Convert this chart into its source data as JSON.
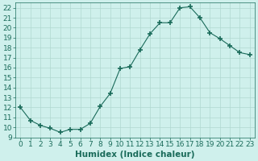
{
  "x": [
    0,
    1,
    2,
    3,
    4,
    5,
    6,
    7,
    8,
    9,
    10,
    11,
    12,
    13,
    14,
    15,
    16,
    17,
    18,
    19,
    20,
    21,
    22,
    23
  ],
  "y": [
    12.0,
    10.7,
    10.2,
    9.9,
    9.5,
    9.8,
    9.8,
    10.4,
    12.1,
    13.4,
    15.9,
    16.1,
    17.8,
    19.4,
    20.5,
    20.5,
    22.0,
    22.1,
    21.0,
    19.5,
    18.9,
    18.2,
    17.5,
    17.3
  ],
  "line_color": "#1a6b5a",
  "marker": "+",
  "marker_size": 5,
  "bg_color": "#cff0ec",
  "grid_color": "#b0d8d0",
  "xlabel": "Humidex (Indice chaleur)",
  "xlim": [
    -0.5,
    23.5
  ],
  "ylim": [
    9,
    22.5
  ],
  "yticks": [
    9,
    10,
    11,
    12,
    13,
    14,
    15,
    16,
    17,
    18,
    19,
    20,
    21,
    22
  ],
  "xticks": [
    0,
    1,
    2,
    3,
    4,
    5,
    6,
    7,
    8,
    9,
    10,
    11,
    12,
    13,
    14,
    15,
    16,
    17,
    18,
    19,
    20,
    21,
    22,
    23
  ],
  "tick_color": "#1a6b5a",
  "label_color": "#1a6b5a",
  "font_size": 6.5,
  "xlabel_fontsize": 7.5
}
